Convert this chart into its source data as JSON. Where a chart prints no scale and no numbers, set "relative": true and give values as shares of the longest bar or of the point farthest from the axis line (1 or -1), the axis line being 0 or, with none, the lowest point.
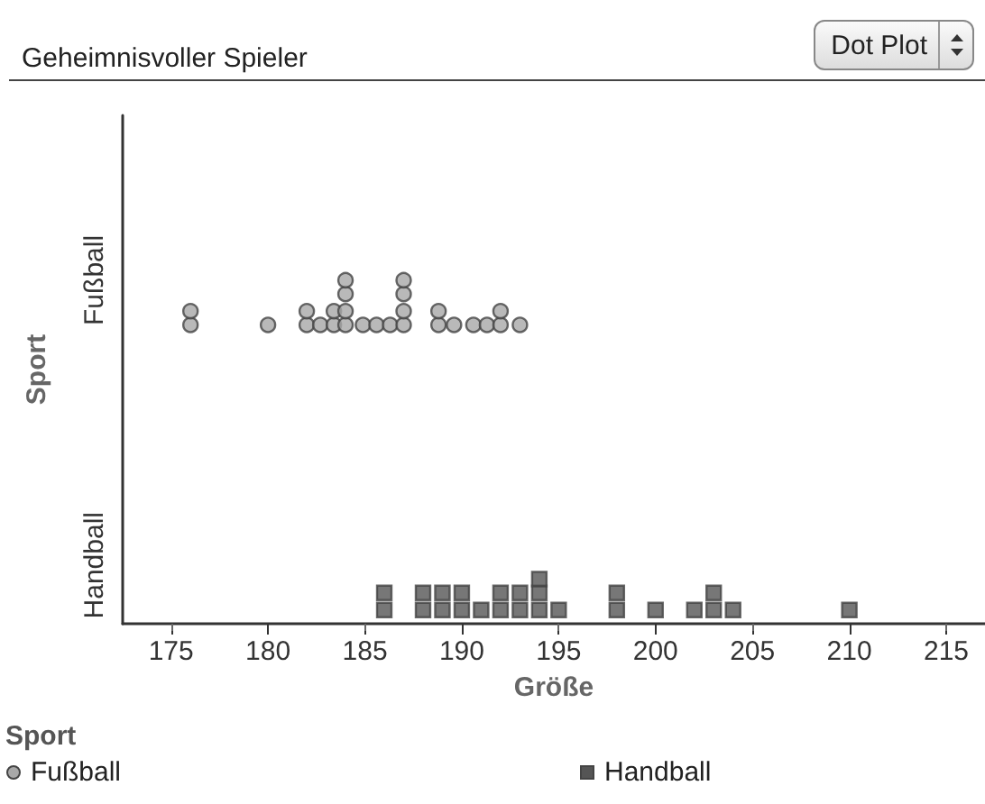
{
  "chart_data": {
    "type": "scatter",
    "title": "Geheimnisvoller Spieler",
    "xlabel": "Größe",
    "ylabel": "Sport",
    "legend_title": "Sport",
    "legend": "bottom",
    "annotations": [
      "Dot Plot"
    ],
    "relative": true,
    "xlim": [
      172.5,
      217
    ],
    "xticks": [
      175,
      180,
      185,
      190,
      195,
      200,
      205,
      210,
      215
    ],
    "series": [
      {
        "name": "Fußball",
        "color": "#a8a8a8",
        "marker": "circle",
        "x": [
          176,
          176,
          180,
          182,
          182,
          182.7,
          183.4,
          183.4,
          184,
          184,
          184,
          184,
          184.9,
          185.6,
          186.3,
          187,
          187,
          187,
          187,
          188.8,
          188.8,
          189.6,
          190.6,
          191.3,
          192,
          192,
          193
        ],
        "values": [
          0.87,
          0.91,
          0.87,
          0.87,
          0.91,
          0.87,
          0.87,
          0.91,
          0.87,
          0.91,
          0.96,
          1,
          0.87,
          0.87,
          0.87,
          0.87,
          0.91,
          0.96,
          1,
          0.87,
          0.91,
          0.87,
          0.87,
          0.87,
          0.87,
          0.91,
          0.87
        ]
      },
      {
        "name": "Handball",
        "color": "#555555",
        "marker": "square",
        "x": [
          186,
          186,
          188,
          188,
          189,
          189,
          190,
          190,
          191,
          192,
          192,
          193,
          193,
          194,
          194,
          194,
          195,
          198,
          198,
          200,
          202,
          203,
          203,
          204,
          210
        ],
        "values": [
          0.04,
          0.09,
          0.04,
          0.09,
          0.04,
          0.09,
          0.04,
          0.09,
          0.04,
          0.04,
          0.09,
          0.04,
          0.09,
          0.04,
          0.09,
          0.13,
          0.04,
          0.04,
          0.09,
          0.04,
          0.04,
          0.04,
          0.09,
          0.04,
          0.04
        ]
      }
    ]
  }
}
